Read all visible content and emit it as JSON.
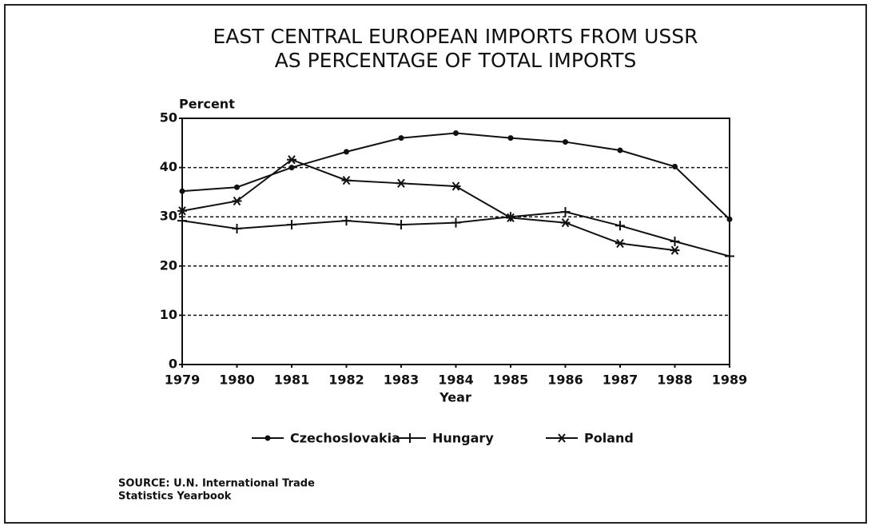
{
  "chart_data": {
    "type": "line",
    "title": "EAST CENTRAL EUROPEAN IMPORTS FROM USSR",
    "subtitle": "AS PERCENTAGE OF TOTAL IMPORTS",
    "y_label": "Percent",
    "x_label": "Year",
    "x": [
      1979,
      1980,
      1981,
      1982,
      1983,
      1984,
      1985,
      1986,
      1987,
      1988,
      1989
    ],
    "series": [
      {
        "name": "Czechoslovakia",
        "color": "#111111",
        "marker": "dot",
        "values": [
          35.2,
          36,
          40,
          43.2,
          46,
          47,
          46,
          45.2,
          43.5,
          40.2,
          29.5
        ]
      },
      {
        "name": "Hungary",
        "color": "#111111",
        "marker": "plus",
        "values": [
          29.2,
          27.6,
          28.4,
          29.2,
          28.4,
          28.8,
          30,
          31,
          28.2,
          25,
          22
        ]
      },
      {
        "name": "Poland",
        "color": "#111111",
        "marker": "asterisk",
        "values": [
          31.2,
          33.2,
          41.6,
          37.4,
          36.8,
          36.2,
          29.8,
          28.8,
          24.6,
          23.2,
          null
        ]
      }
    ],
    "xlim": [
      1979,
      1989
    ],
    "xticks": [
      1979,
      1980,
      1981,
      1982,
      1983,
      1984,
      1985,
      1986,
      1987,
      1988,
      1989
    ],
    "ylim": [
      0,
      50
    ],
    "yticks": [
      0,
      10,
      20,
      30,
      40,
      50
    ],
    "grid": true,
    "source": [
      "SOURCE: U.N. International Trade",
      "Statistics Yearbook"
    ]
  }
}
